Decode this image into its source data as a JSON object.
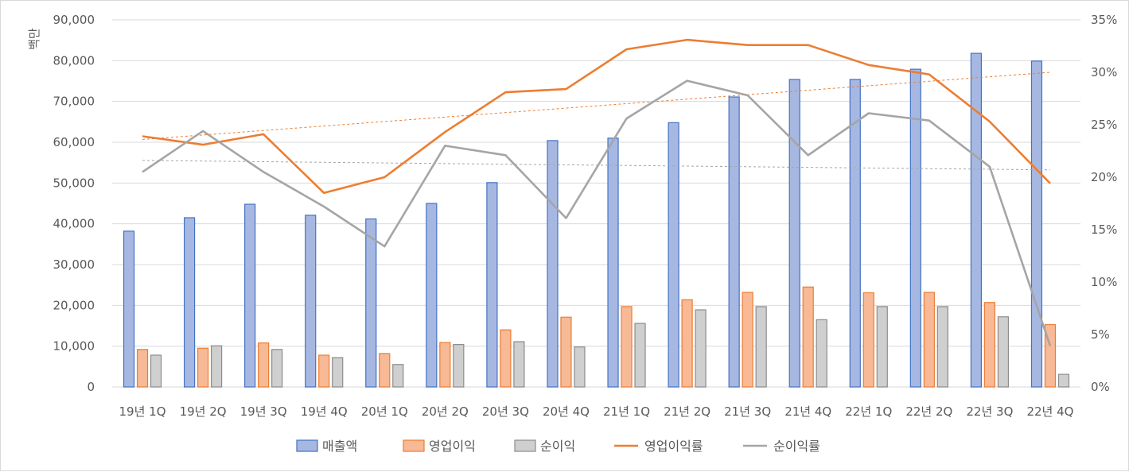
{
  "chart_data": {
    "type": "bar",
    "categories": [
      "19년 1Q",
      "19년 2Q",
      "19년 3Q",
      "19년 4Q",
      "20년 1Q",
      "20년 2Q",
      "20년 3Q",
      "20년 4Q",
      "21년 1Q",
      "21년 2Q",
      "21년 3Q",
      "21년 4Q",
      "22년 1Q",
      "22년 2Q",
      "22년 3Q",
      "22년 4Q"
    ],
    "ylabel": "백만",
    "ylim": [
      0,
      90000
    ],
    "y2lim": [
      0,
      35
    ],
    "yticks": [
      "0",
      "10,000",
      "20,000",
      "30,000",
      "40,000",
      "50,000",
      "60,000",
      "70,000",
      "80,000",
      "90,000"
    ],
    "y2ticks": [
      "0%",
      "5%",
      "10%",
      "15%",
      "20%",
      "25%",
      "30%",
      "35%"
    ],
    "grid": true,
    "legend_position": "bottom",
    "bar_series": [
      {
        "name": "매출액",
        "color": "#4472c4",
        "fill": "#a6b8e2",
        "values": [
          38200,
          41500,
          44800,
          42100,
          41200,
          45000,
          50100,
          60400,
          61000,
          64800,
          71100,
          75400,
          75400,
          77900,
          81800,
          79900
        ]
      },
      {
        "name": "영업이익",
        "color": "#ed7d31",
        "fill": "#f8b996",
        "values": [
          9200,
          9500,
          10800,
          7800,
          8200,
          10900,
          14000,
          17100,
          19700,
          21400,
          23200,
          24500,
          23100,
          23200,
          20700,
          15300
        ]
      },
      {
        "name": "순이익",
        "color": "#8c8c8c",
        "fill": "#cfcfcf",
        "values": [
          7800,
          10100,
          9200,
          7200,
          5500,
          10400,
          11100,
          9800,
          15600,
          18900,
          19700,
          16500,
          19700,
          19700,
          17200,
          3100
        ]
      }
    ],
    "line_series": [
      {
        "name": "영업이익률",
        "color": "#ed7d31",
        "values": [
          23.9,
          23.1,
          24.1,
          18.5,
          20.0,
          24.3,
          28.1,
          28.4,
          32.2,
          33.1,
          32.6,
          32.6,
          30.7,
          29.8,
          25.3,
          19.4
        ]
      },
      {
        "name": "순이익률",
        "color": "#a5a5a5",
        "values": [
          20.5,
          24.4,
          20.5,
          17.2,
          13.4,
          23.0,
          22.1,
          16.1,
          25.6,
          29.2,
          27.8,
          22.1,
          26.1,
          25.4,
          21.0,
          3.9
        ]
      }
    ],
    "trendlines": [
      {
        "series": "영업이익률",
        "color": "#ed7d31",
        "from": 23.6,
        "to": 30.0
      },
      {
        "series": "순이익률",
        "color": "#a5a5a5",
        "from": 21.6,
        "to": 20.7
      }
    ]
  }
}
